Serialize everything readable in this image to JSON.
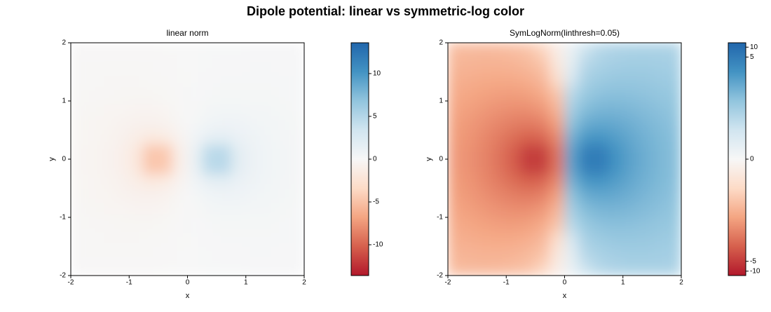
{
  "title": "Dipole potential: linear vs symmetric-log color",
  "chart_data": [
    {
      "type": "heatmap",
      "title": "linear norm",
      "xlabel": "x",
      "ylabel": "y",
      "norm": "linear",
      "colors": [
        "#b2182b",
        "#d6604d",
        "#f4a582",
        "#fddbc7",
        "#f7f7f7",
        "#d1e5f0",
        "#92c5de",
        "#4393c3",
        "#2166ac"
      ],
      "xlim": [
        -2,
        2
      ],
      "ylim": [
        -2,
        2
      ],
      "xticks": [
        -2,
        -1,
        0,
        1,
        2
      ],
      "yticks": [
        -2,
        -1,
        0,
        1,
        2
      ],
      "clim": [
        -13.6,
        13.6
      ],
      "cticks": [
        -10,
        -5,
        0,
        5,
        10
      ],
      "x": [
        -1.875,
        -1.625,
        -1.375,
        -1.125,
        -0.875,
        -0.625,
        -0.375,
        -0.125,
        0.125,
        0.375,
        0.625,
        0.875,
        1.125,
        1.375,
        1.625,
        1.875
      ],
      "y": [
        -1.875,
        -1.625,
        -1.375,
        -1.125,
        -0.875,
        -0.625,
        -0.375,
        -0.125,
        0.125,
        0.375,
        0.625,
        0.875,
        1.125,
        1.375,
        1.625,
        1.875
      ],
      "z": [
        [
          -0.1,
          -0.104,
          -0.106,
          -0.103,
          -0.093,
          -0.075,
          -0.049,
          -0.017,
          0.017,
          0.049,
          0.075,
          0.093,
          0.103,
          0.106,
          0.104,
          0.1
        ],
        [
          -0.122,
          -0.132,
          -0.139,
          -0.139,
          -0.13,
          -0.108,
          -0.072,
          -0.025,
          0.025,
          0.072,
          0.108,
          0.13,
          0.139,
          0.139,
          0.132,
          0.122
        ],
        [
          -0.15,
          -0.168,
          -0.184,
          -0.192,
          -0.187,
          -0.161,
          -0.111,
          -0.04,
          0.04,
          0.111,
          0.161,
          0.187,
          0.192,
          0.184,
          0.168,
          0.15
        ],
        [
          -0.182,
          -0.213,
          -0.244,
          -0.271,
          -0.28,
          -0.255,
          -0.182,
          -0.066,
          0.066,
          0.182,
          0.255,
          0.28,
          0.271,
          0.244,
          0.213,
          0.182
        ],
        [
          -0.219,
          -0.267,
          -0.325,
          -0.388,
          -0.437,
          -0.429,
          -0.323,
          -0.12,
          0.12,
          0.323,
          0.429,
          0.437,
          0.388,
          0.325,
          0.267,
          0.219
        ],
        [
          -0.255,
          -0.326,
          -0.424,
          -0.557,
          -0.71,
          -0.792,
          -0.639,
          -0.241,
          0.241,
          0.639,
          0.792,
          0.71,
          0.557,
          0.424,
          0.326,
          0.255
        ],
        [
          -0.286,
          -0.38,
          -0.527,
          -0.772,
          -1.184,
          -1.687,
          -1.48,
          -0.514,
          0.514,
          1.48,
          1.687,
          1.184,
          0.772,
          0.527,
          0.38,
          0.286
        ],
        [
          -0.304,
          -0.414,
          -0.599,
          -0.955,
          -1.806,
          -4.773,
          -4.526,
          -0.961,
          0.961,
          4.526,
          4.773,
          1.806,
          0.955,
          0.599,
          0.414,
          0.304
        ],
        [
          -0.304,
          -0.414,
          -0.599,
          -0.955,
          -1.806,
          -4.773,
          -4.526,
          -0.961,
          0.961,
          4.526,
          4.773,
          1.806,
          0.955,
          0.599,
          0.414,
          0.304
        ],
        [
          -0.286,
          -0.38,
          -0.527,
          -0.772,
          -1.184,
          -1.687,
          -1.48,
          -0.514,
          0.514,
          1.48,
          1.687,
          1.184,
          0.772,
          0.527,
          0.38,
          0.286
        ],
        [
          -0.255,
          -0.326,
          -0.424,
          -0.557,
          -0.71,
          -0.792,
          -0.639,
          -0.241,
          0.241,
          0.639,
          0.792,
          0.71,
          0.557,
          0.424,
          0.326,
          0.255
        ],
        [
          -0.219,
          -0.267,
          -0.325,
          -0.388,
          -0.437,
          -0.429,
          -0.323,
          -0.12,
          0.12,
          0.323,
          0.429,
          0.437,
          0.388,
          0.325,
          0.267,
          0.219
        ],
        [
          -0.182,
          -0.213,
          -0.244,
          -0.271,
          -0.28,
          -0.255,
          -0.182,
          -0.066,
          0.066,
          0.182,
          0.255,
          0.28,
          0.271,
          0.244,
          0.213,
          0.182
        ],
        [
          -0.15,
          -0.168,
          -0.184,
          -0.192,
          -0.187,
          -0.161,
          -0.111,
          -0.04,
          0.04,
          0.111,
          0.161,
          0.187,
          0.192,
          0.184,
          0.168,
          0.15
        ],
        [
          -0.122,
          -0.132,
          -0.139,
          -0.139,
          -0.13,
          -0.108,
          -0.072,
          -0.025,
          0.025,
          0.072,
          0.108,
          0.13,
          0.139,
          0.139,
          0.132,
          0.122
        ],
        [
          -0.1,
          -0.104,
          -0.106,
          -0.103,
          -0.093,
          -0.075,
          -0.049,
          -0.017,
          0.017,
          0.049,
          0.075,
          0.093,
          0.103,
          0.106,
          0.104,
          0.1
        ]
      ]
    },
    {
      "type": "heatmap",
      "title": "SymLogNorm(linthresh=0.05)",
      "xlabel": "x",
      "ylabel": "y",
      "norm": "symlog",
      "linthresh": 0.05,
      "colors": [
        "#b2182b",
        "#d6604d",
        "#f4a582",
        "#fddbc7",
        "#f7f7f7",
        "#d1e5f0",
        "#92c5de",
        "#4393c3",
        "#2166ac"
      ],
      "xlim": [
        -2,
        2
      ],
      "ylim": [
        -2,
        2
      ],
      "xticks": [
        -2,
        -1,
        0,
        1,
        2
      ],
      "yticks": [
        -2,
        -1,
        0,
        1,
        2
      ],
      "clim": [
        -13.6,
        13.6
      ],
      "cticks": [
        -10,
        -5,
        0,
        5,
        10
      ],
      "x": [
        -1.875,
        -1.625,
        -1.375,
        -1.125,
        -0.875,
        -0.625,
        -0.375,
        -0.125,
        0.125,
        0.375,
        0.625,
        0.875,
        1.125,
        1.375,
        1.625,
        1.875
      ],
      "y": [
        -1.875,
        -1.625,
        -1.375,
        -1.125,
        -0.875,
        -0.625,
        -0.375,
        -0.125,
        0.125,
        0.375,
        0.625,
        0.875,
        1.125,
        1.375,
        1.625,
        1.875
      ],
      "z": [
        [
          -0.1,
          -0.104,
          -0.106,
          -0.103,
          -0.093,
          -0.075,
          -0.049,
          -0.017,
          0.017,
          0.049,
          0.075,
          0.093,
          0.103,
          0.106,
          0.104,
          0.1
        ],
        [
          -0.122,
          -0.132,
          -0.139,
          -0.139,
          -0.13,
          -0.108,
          -0.072,
          -0.025,
          0.025,
          0.072,
          0.108,
          0.13,
          0.139,
          0.139,
          0.132,
          0.122
        ],
        [
          -0.15,
          -0.168,
          -0.184,
          -0.192,
          -0.187,
          -0.161,
          -0.111,
          -0.04,
          0.04,
          0.111,
          0.161,
          0.187,
          0.192,
          0.184,
          0.168,
          0.15
        ],
        [
          -0.182,
          -0.213,
          -0.244,
          -0.271,
          -0.28,
          -0.255,
          -0.182,
          -0.066,
          0.066,
          0.182,
          0.255,
          0.28,
          0.271,
          0.244,
          0.213,
          0.182
        ],
        [
          -0.219,
          -0.267,
          -0.325,
          -0.388,
          -0.437,
          -0.429,
          -0.323,
          -0.12,
          0.12,
          0.323,
          0.429,
          0.437,
          0.388,
          0.325,
          0.267,
          0.219
        ],
        [
          -0.255,
          -0.326,
          -0.424,
          -0.557,
          -0.71,
          -0.792,
          -0.639,
          -0.241,
          0.241,
          0.639,
          0.792,
          0.71,
          0.557,
          0.424,
          0.326,
          0.255
        ],
        [
          -0.286,
          -0.38,
          -0.527,
          -0.772,
          -1.184,
          -1.687,
          -1.48,
          -0.514,
          0.514,
          1.48,
          1.687,
          1.184,
          0.772,
          0.527,
          0.38,
          0.286
        ],
        [
          -0.304,
          -0.414,
          -0.599,
          -0.955,
          -1.806,
          -4.773,
          -4.526,
          -0.961,
          0.961,
          4.526,
          4.773,
          1.806,
          0.955,
          0.599,
          0.414,
          0.304
        ],
        [
          -0.304,
          -0.414,
          -0.599,
          -0.955,
          -1.806,
          -4.773,
          -4.526,
          -0.961,
          0.961,
          4.526,
          4.773,
          1.806,
          0.955,
          0.599,
          0.414,
          0.304
        ],
        [
          -0.286,
          -0.38,
          -0.527,
          -0.772,
          -1.184,
          -1.687,
          -1.48,
          -0.514,
          0.514,
          1.48,
          1.687,
          1.184,
          0.772,
          0.527,
          0.38,
          0.286
        ],
        [
          -0.255,
          -0.326,
          -0.424,
          -0.557,
          -0.71,
          -0.792,
          -0.639,
          -0.241,
          0.241,
          0.639,
          0.792,
          0.71,
          0.557,
          0.424,
          0.326,
          0.255
        ],
        [
          -0.219,
          -0.267,
          -0.325,
          -0.388,
          -0.437,
          -0.429,
          -0.323,
          -0.12,
          0.12,
          0.323,
          0.429,
          0.437,
          0.388,
          0.325,
          0.267,
          0.219
        ],
        [
          -0.182,
          -0.213,
          -0.244,
          -0.271,
          -0.28,
          -0.255,
          -0.182,
          -0.066,
          0.066,
          0.182,
          0.255,
          0.28,
          0.271,
          0.244,
          0.213,
          0.182
        ],
        [
          -0.15,
          -0.168,
          -0.184,
          -0.192,
          -0.187,
          -0.161,
          -0.111,
          -0.04,
          0.04,
          0.111,
          0.161,
          0.187,
          0.192,
          0.184,
          0.168,
          0.15
        ],
        [
          -0.122,
          -0.132,
          -0.139,
          -0.139,
          -0.13,
          -0.108,
          -0.072,
          -0.025,
          0.025,
          0.072,
          0.108,
          0.13,
          0.139,
          0.139,
          0.132,
          0.122
        ],
        [
          -0.1,
          -0.104,
          -0.106,
          -0.103,
          -0.093,
          -0.075,
          -0.049,
          -0.017,
          0.017,
          0.049,
          0.075,
          0.093,
          0.103,
          0.106,
          0.104,
          0.1
        ]
      ]
    }
  ]
}
